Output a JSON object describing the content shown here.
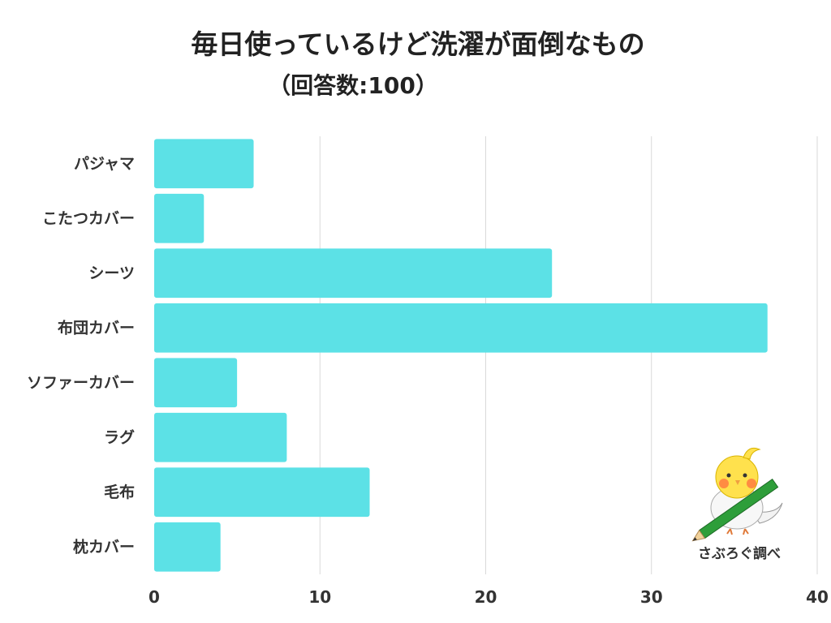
{
  "title": "毎日使っているけど洗濯が面倒なもの",
  "subtitle": "（回答数:100）",
  "credit": "さぶろぐ調べ",
  "colors": {
    "bar": "#5ce1e6",
    "grid": "#d9d9d9",
    "text": "#333333"
  },
  "chart_data": {
    "type": "bar",
    "orientation": "horizontal",
    "categories": [
      "パジャマ",
      "こたつカバー",
      "シーツ",
      "布団カバー",
      "ソファーカバー",
      "ラグ",
      "毛布",
      "枕カバー"
    ],
    "values": [
      6,
      3,
      24,
      37,
      5,
      8,
      13,
      4
    ],
    "xlim": [
      0,
      40
    ],
    "xticks": [
      0,
      10,
      20,
      30,
      40
    ],
    "grid": true,
    "legend": "none"
  }
}
